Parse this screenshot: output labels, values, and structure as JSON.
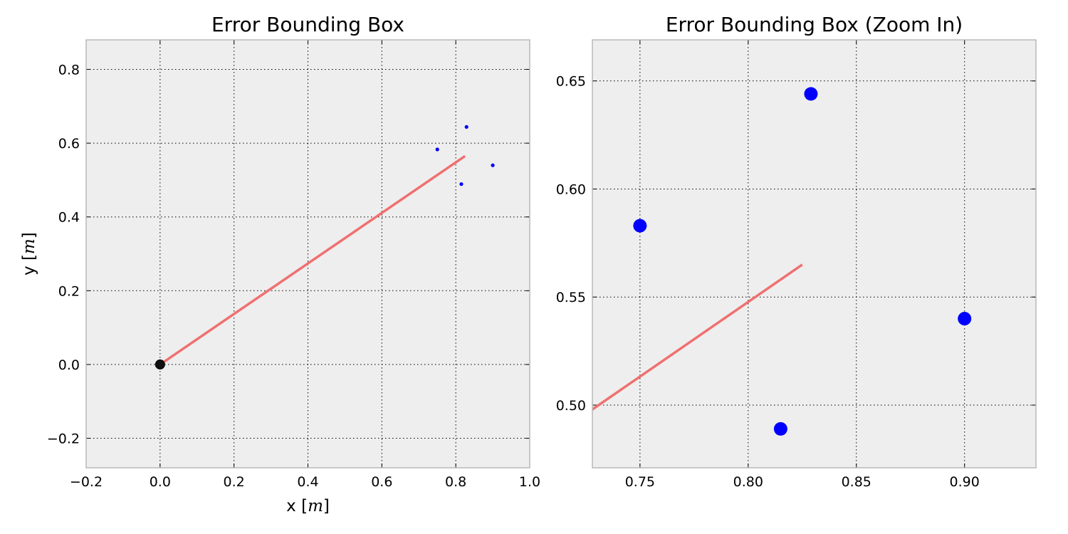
{
  "chart_data": [
    {
      "type": "scatter",
      "title": "Error Bounding Box",
      "xlabel": "x",
      "xlabel_unit": "m",
      "ylabel": "y",
      "ylabel_unit": "m",
      "xlim": [
        -0.2,
        1.0
      ],
      "ylim": [
        -0.28,
        0.88
      ],
      "xticks": [
        -0.2,
        0.0,
        0.2,
        0.4,
        0.6,
        0.8,
        1.0
      ],
      "xtick_labels": [
        "−0.2",
        "0.0",
        "0.2",
        "0.4",
        "0.6",
        "0.8",
        "1.0"
      ],
      "yticks": [
        -0.2,
        0.0,
        0.2,
        0.4,
        0.6,
        0.8
      ],
      "ytick_labels": [
        "−0.2",
        "0.0",
        "0.2",
        "0.4",
        "0.6",
        "0.8"
      ],
      "grid": true,
      "series": [
        {
          "kind": "line",
          "x": [
            0.0,
            0.825
          ],
          "y": [
            0.0,
            0.565
          ],
          "color": "#f07070"
        },
        {
          "kind": "points",
          "x": [
            0.75,
            0.829,
            0.815,
            0.9
          ],
          "y": [
            0.583,
            0.644,
            0.489,
            0.54
          ],
          "color": "#0000ff",
          "size": "small"
        },
        {
          "kind": "points",
          "x": [
            0.0
          ],
          "y": [
            0.0
          ],
          "color": "#111111",
          "size": "medium"
        }
      ]
    },
    {
      "type": "scatter",
      "title": "Error Bounding Box (Zoom In)",
      "xlabel": "",
      "ylabel": "",
      "xlim": [
        0.728,
        0.933
      ],
      "ylim": [
        0.471,
        0.669
      ],
      "xticks": [
        0.75,
        0.8,
        0.85,
        0.9
      ],
      "xtick_labels": [
        "0.75",
        "0.80",
        "0.85",
        "0.90"
      ],
      "yticks": [
        0.5,
        0.55,
        0.6,
        0.65
      ],
      "ytick_labels": [
        "0.50",
        "0.55",
        "0.60",
        "0.65"
      ],
      "grid": true,
      "series": [
        {
          "kind": "line",
          "x": [
            0.728,
            0.825
          ],
          "y": [
            0.498,
            0.565
          ],
          "color": "#f07070"
        },
        {
          "kind": "points",
          "x": [
            0.75,
            0.829,
            0.815,
            0.9
          ],
          "y": [
            0.583,
            0.644,
            0.489,
            0.54
          ],
          "color": "#0000ff",
          "size": "large"
        }
      ]
    }
  ]
}
